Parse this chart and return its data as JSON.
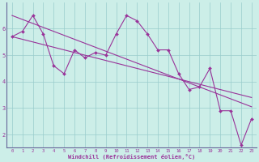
{
  "xlabel": "Windchill (Refroidissement éolien,°C)",
  "background_color": "#cceee8",
  "line_color": "#993399",
  "grid_color": "#99cccc",
  "axis_color": "#666699",
  "xlim": [
    -0.5,
    23.5
  ],
  "ylim": [
    1.5,
    7.0
  ],
  "yticks": [
    2,
    3,
    4,
    5,
    6
  ],
  "xticks": [
    0,
    1,
    2,
    3,
    4,
    5,
    6,
    7,
    8,
    9,
    10,
    11,
    12,
    13,
    14,
    15,
    16,
    17,
    18,
    19,
    20,
    21,
    22,
    23
  ],
  "series_jagged": [
    5.7,
    5.9,
    6.5,
    5.8,
    4.6,
    4.3,
    5.2,
    4.9,
    5.1,
    5.0,
    5.8,
    6.5,
    6.3,
    5.8,
    5.2,
    5.2,
    4.3,
    3.7,
    3.8,
    4.5,
    2.9,
    2.9,
    1.6,
    2.6
  ],
  "series_trend1": [
    6.5,
    6.35,
    6.2,
    6.05,
    5.9,
    5.75,
    5.6,
    5.45,
    5.3,
    5.15,
    5.0,
    4.85,
    4.7,
    4.55,
    4.4,
    4.25,
    4.1,
    3.95,
    3.8,
    3.65,
    3.5,
    3.35,
    3.2,
    3.05
  ],
  "series_trend2": [
    5.7,
    5.6,
    5.5,
    5.4,
    5.3,
    5.2,
    5.1,
    5.0,
    4.9,
    4.8,
    4.7,
    4.6,
    4.5,
    4.4,
    4.3,
    4.2,
    4.1,
    4.0,
    3.9,
    3.8,
    3.7,
    3.6,
    3.5,
    3.4
  ]
}
